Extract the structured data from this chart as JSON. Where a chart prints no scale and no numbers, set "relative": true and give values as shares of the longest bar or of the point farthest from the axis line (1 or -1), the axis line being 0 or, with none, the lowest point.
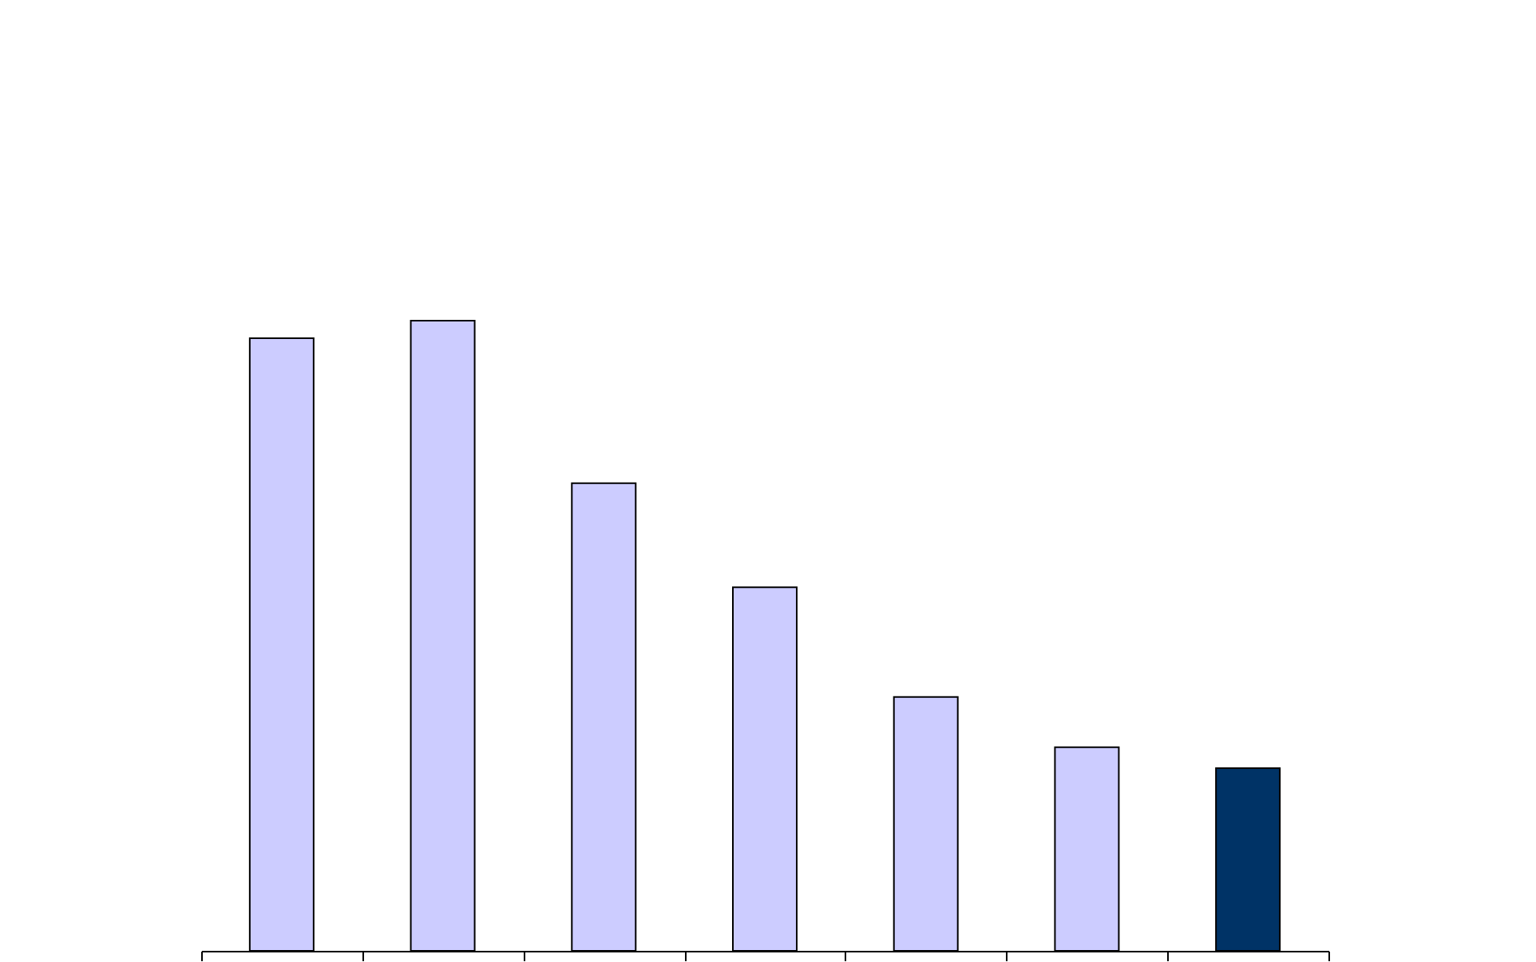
{
  "chart_data": {
    "type": "bar",
    "relative": true,
    "categories": [
      null,
      null,
      null,
      null,
      null,
      null,
      null
    ],
    "values": [
      0.972,
      1,
      0.742,
      0.577,
      0.403,
      0.323,
      0.29
    ],
    "colors": [
      "#ccccff",
      "#ccccff",
      "#ccccff",
      "#ccccff",
      "#ccccff",
      "#ccccff",
      "#003366"
    ],
    "grid": false
  }
}
